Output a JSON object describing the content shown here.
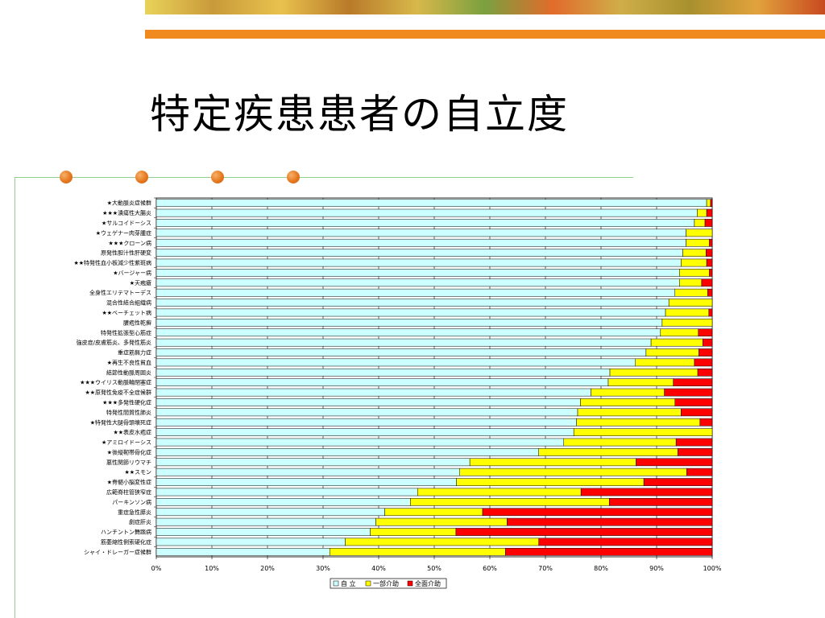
{
  "slide": {
    "title": "特定疾患患者の自立度"
  },
  "decor": {
    "banner_colors": [
      "#e9d35a",
      "#c84a20",
      "#7aa040"
    ],
    "accent_orange": "#f08a1e",
    "line_green": "#8fd08a"
  },
  "chart_data": {
    "type": "bar",
    "orientation": "horizontal",
    "stacked": true,
    "percent": true,
    "categories": [
      "★大動脈炎症候群",
      "★★★潰瘍性大腸炎",
      "★サルコイドーシス",
      "★ウェゲナー肉芽腫症",
      "★★★クローン病",
      "原発性胆汁性肝硬変",
      "★★特発性血小板減少性紫斑病",
      "★バージャー病",
      "★天疱瘡",
      "全身性エリテマトーデス",
      "混合性結合組織病",
      "★★ベーチェット病",
      "膿疱性乾癬",
      "特発性拡張型心筋症",
      "強皮症/皮膚筋炎、多発性筋炎",
      "重症筋無力症",
      "★再生不良性貧血",
      "結節性動脈周囲炎",
      "★★★ウイリス動脈輪閉塞症",
      "★★原発性免疫不全症候群",
      "★★★多発性硬化症",
      "特発性間質性肺炎",
      "★特発性大腿骨頭壊死症",
      "★★表皮水疱症",
      "★アミロイドーシス",
      "★後縦靭帯骨化症",
      "悪性関節リウマチ",
      "★★スモン",
      "★脊髄小脳変性症",
      "広範脊柱管狭窄症",
      "パーキンソン病",
      "重症急性膵炎",
      "劇症肝炎",
      "ハンチントン舞踏病",
      "筋萎縮性側索硬化症",
      "シャイ・ドレーガー症候群"
    ],
    "series": [
      {
        "name": "自 立",
        "color": "#ccffff",
        "values": [
          99.0,
          97.3,
          96.8,
          95.3,
          95.3,
          94.7,
          94.4,
          94.1,
          94.1,
          93.3,
          92.2,
          91.6,
          91.0,
          90.7,
          89.0,
          88.1,
          86.2,
          81.6,
          81.3,
          78.2,
          76.3,
          75.8,
          75.6,
          75.1,
          73.3,
          68.8,
          56.4,
          54.6,
          54.0,
          47.0,
          45.7,
          41.1,
          39.5,
          38.5,
          34.0,
          31.2
        ]
      },
      {
        "name": "一部介助",
        "color": "#ffff00",
        "values": [
          0.7,
          1.7,
          1.9,
          4.7,
          4.2,
          4.2,
          4.6,
          5.4,
          4.0,
          5.9,
          7.8,
          7.8,
          9.0,
          6.8,
          9.3,
          9.5,
          10.6,
          15.8,
          11.7,
          13.2,
          17.0,
          18.6,
          22.2,
          24.9,
          20.2,
          25.0,
          29.9,
          40.8,
          33.7,
          29.4,
          35.8,
          17.6,
          23.6,
          15.4,
          34.8,
          31.6
        ]
      },
      {
        "name": "全面介助",
        "color": "#ff0000",
        "values": [
          0.3,
          1.0,
          1.3,
          0.0,
          0.5,
          1.1,
          1.0,
          0.5,
          1.9,
          0.8,
          0.0,
          0.6,
          0.0,
          2.5,
          1.7,
          2.4,
          3.2,
          2.6,
          7.0,
          8.6,
          6.7,
          5.6,
          2.2,
          0.0,
          6.5,
          6.2,
          13.7,
          4.6,
          12.3,
          23.6,
          18.5,
          41.3,
          36.9,
          46.1,
          31.2,
          37.2
        ]
      }
    ],
    "xlim": [
      0,
      100
    ],
    "x_ticks": [
      "0%",
      "10%",
      "20%",
      "30%",
      "40%",
      "50%",
      "60%",
      "70%",
      "80%",
      "90%",
      "100%"
    ],
    "grid": true,
    "legend_position": "bottom"
  }
}
